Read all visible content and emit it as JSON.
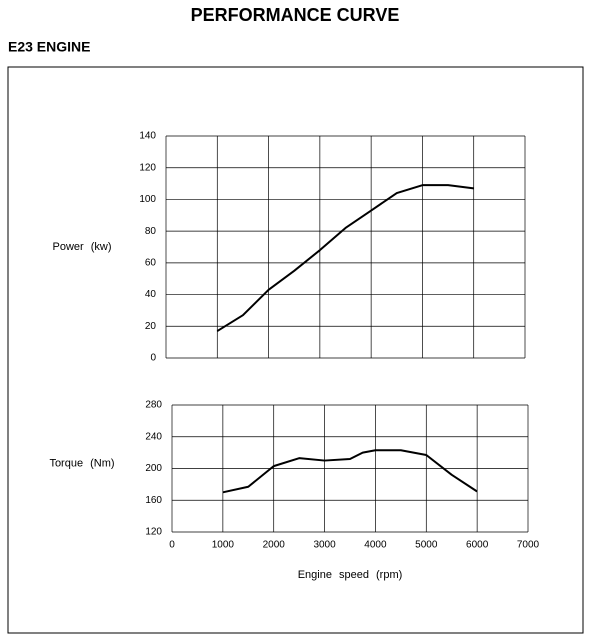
{
  "header": {
    "title": "PERFORMANCE CURVE",
    "subtitle": "E23 ENGINE"
  },
  "chart_data": [
    {
      "type": "line",
      "ylabel": "Power (kw)",
      "x": [
        1000,
        1500,
        2000,
        2500,
        3000,
        3500,
        4000,
        4500,
        5000,
        5500,
        6000
      ],
      "series": [
        {
          "name": "Power",
          "color": "#000000",
          "values": [
            17,
            27,
            43,
            55,
            68,
            82,
            93,
            104,
            109,
            109,
            107
          ]
        }
      ],
      "xlim": [
        0,
        7000
      ],
      "xticks": [
        0,
        1000,
        2000,
        3000,
        4000,
        5000,
        6000,
        7000
      ],
      "show_xtick_labels": false,
      "ylim": [
        0,
        140
      ],
      "yticks": [
        0,
        20,
        40,
        60,
        80,
        100,
        120,
        140
      ],
      "grid": true
    },
    {
      "type": "line",
      "ylabel": "Torque (Nm)",
      "xlabel": "Engine speed (rpm)",
      "x": [
        1000,
        1500,
        2000,
        2500,
        3000,
        3500,
        3750,
        4000,
        4500,
        5000,
        5500,
        6000
      ],
      "series": [
        {
          "name": "Torque",
          "color": "#000000",
          "values": [
            170,
            177,
            203,
            213,
            210,
            212,
            220,
            223,
            223,
            217,
            192,
            171
          ]
        }
      ],
      "xlim": [
        0,
        7000
      ],
      "xticks": [
        0,
        1000,
        2000,
        3000,
        4000,
        5000,
        6000,
        7000
      ],
      "show_xtick_labels": true,
      "ylim": [
        120,
        280
      ],
      "yticks": [
        120,
        160,
        200,
        240,
        280
      ],
      "grid": true
    }
  ]
}
